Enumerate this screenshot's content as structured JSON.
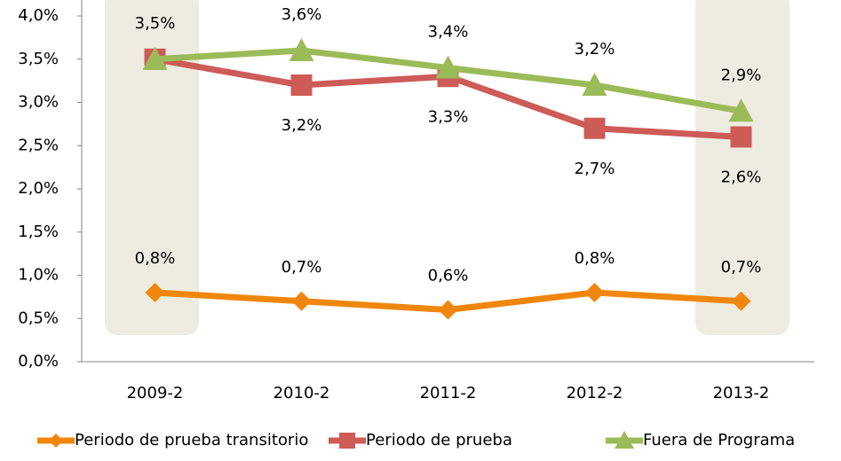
{
  "chart_data": {
    "type": "line",
    "categories": [
      "2009-2",
      "2010-2",
      "2011-2",
      "2012-2",
      "2013-2"
    ],
    "series": [
      {
        "name": "Periodo de prueba transitorio",
        "color": "#f0870c",
        "marker": "diamond",
        "values": [
          0.8,
          0.7,
          0.6,
          0.8,
          0.7
        ],
        "value_labels": [
          "0,8%",
          "0,7%",
          "0,6%",
          "0,8%",
          "0,7%"
        ]
      },
      {
        "name": "Periodo de prueba",
        "color": "#cd5b57",
        "marker": "square",
        "values": [
          3.5,
          3.2,
          3.3,
          2.7,
          2.6
        ],
        "value_labels": [
          null,
          "3,2%",
          "3,3%",
          "2,7%",
          "2,6%"
        ]
      },
      {
        "name": "Fuera de Programa",
        "color": "#9bbb59",
        "marker": "triangle",
        "values": [
          3.5,
          3.6,
          3.4,
          3.2,
          2.9
        ],
        "value_labels": [
          "3,5%",
          "3,6%",
          "3,4%",
          "3,2%",
          "2,9%"
        ]
      }
    ],
    "ylim": [
      0,
      4
    ],
    "yticks": [
      {
        "value": 0,
        "label": "0,0%"
      },
      {
        "value": 0.5,
        "label": "0,5%"
      },
      {
        "value": 1,
        "label": "1,0%"
      },
      {
        "value": 1.5,
        "label": "1,5%"
      },
      {
        "value": 2,
        "label": "2,0%"
      },
      {
        "value": 2.5,
        "label": "2,5%"
      },
      {
        "value": 3,
        "label": "3,0%"
      },
      {
        "value": 3.5,
        "label": "3,5%"
      },
      {
        "value": 4,
        "label": "4,0%"
      }
    ],
    "grid": false,
    "legend": "bottom"
  }
}
